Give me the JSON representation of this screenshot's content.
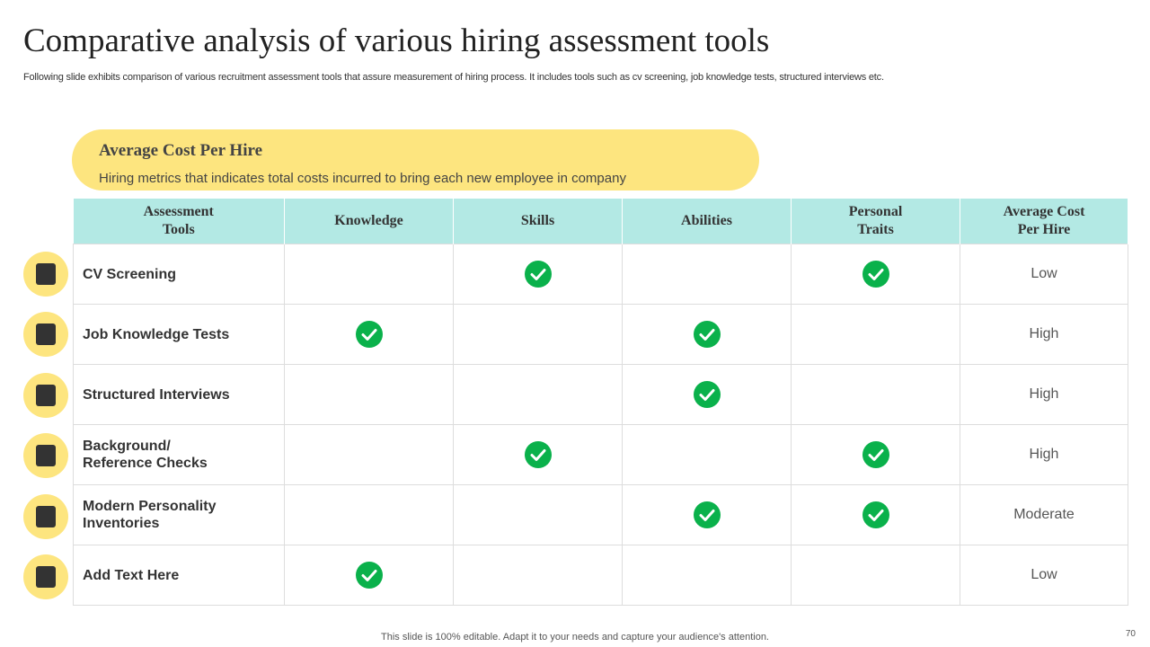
{
  "header": {
    "title": "Comparative analysis of various hiring assessment tools",
    "subtitle": "Following slide exhibits comparison of various recruitment assessment tools that assure measurement of hiring process. It includes tools such as cv screening, job knowledge tests, structured interviews etc."
  },
  "callout": {
    "title": "Average Cost Per Hire",
    "text": "Hiring metrics that indicates total costs incurred to bring each new employee in company"
  },
  "table": {
    "columns": [
      [
        "Assessment",
        "Tools"
      ],
      [
        "Knowledge"
      ],
      [
        "Skills"
      ],
      [
        "Abilities"
      ],
      [
        "Personal",
        "Traits"
      ],
      [
        "Average Cost",
        "Per Hire"
      ]
    ],
    "rows": [
      {
        "tool": [
          "CV Screening"
        ],
        "checks": [
          false,
          true,
          false,
          true
        ],
        "cost": "Low"
      },
      {
        "tool": [
          "Job Knowledge Tests"
        ],
        "checks": [
          true,
          false,
          true,
          false
        ],
        "cost": "High"
      },
      {
        "tool": [
          "Structured Interviews"
        ],
        "checks": [
          false,
          false,
          true,
          false
        ],
        "cost": "High"
      },
      {
        "tool": [
          "Background/",
          "Reference Checks"
        ],
        "checks": [
          false,
          true,
          false,
          true
        ],
        "cost": "High"
      },
      {
        "tool": [
          "Modern Personality",
          "Inventories"
        ],
        "checks": [
          false,
          false,
          true,
          true
        ],
        "cost": "Moderate"
      },
      {
        "tool": [
          "Add Text Here"
        ],
        "checks": [
          true,
          false,
          false,
          false
        ],
        "cost": "Low"
      }
    ]
  },
  "footer": {
    "note": "This slide is 100% editable. Adapt it to your needs and capture your audience's attention.",
    "page": "70"
  }
}
